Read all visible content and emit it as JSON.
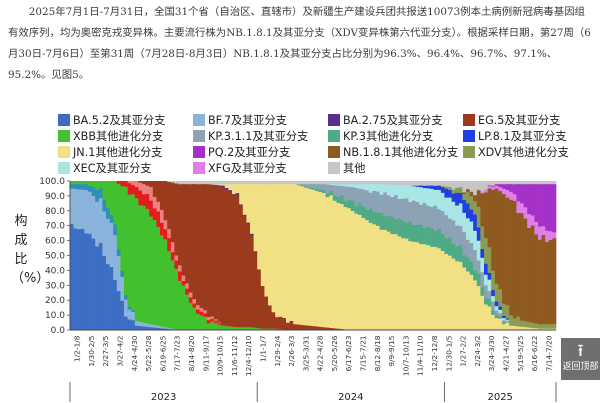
{
  "paragraph": "2025年7月1日-7月31日，全国31个省（自治区、直辖市）及新疆生产建设兵团共报送10073例本土病例新冠病毒基因组有效序列，均为奥密克戎变异株。主要流行株为NB.1.8.1及其亚分支（XDV变异株第六代亚分支）。根据采样日期，第27周（6月30日-7月6日）至第31周（7月28日-8月3日）NB.1.8.1及其亚分支占比分别为96.3%、96.4%、96.7%、97.1%、95.2%。见图5。",
  "back_to_top": {
    "icon": "arrow-up-icon",
    "label": "返回顶部"
  },
  "chart_data": {
    "type": "bar",
    "stacked": true,
    "ylabel": "构成比（%）",
    "ylim": [
      0,
      100
    ],
    "yticks": [
      "0.0",
      "10.0",
      "20.0",
      "30.0",
      "40.0",
      "50.0",
      "60.0",
      "70.0",
      "80.0",
      "90.0",
      "100.0"
    ],
    "x_tick_labels": [
      "1/2-1/8",
      "1/30-2/5",
      "2/27-3/5",
      "3/27-4/2",
      "4/24-4/30",
      "5/22-5/28",
      "6/19-6/25",
      "7/17-7/23",
      "8/14-8/20",
      "9/11-9/17",
      "10/9-10/15",
      "11/6-11/12",
      "12/4-12/10",
      "1/1-1/7",
      "1/29-2/4",
      "2/26-3/3",
      "3/25-3/31",
      "4/22-4/28",
      "5/20-5/26",
      "6/17-6/23",
      "7/15-7/21",
      "8/12-8/18",
      "9/9-9/15",
      "10/7-10/13",
      "11/4-11/10",
      "12/2-12/8",
      "12/30-1/5",
      "1/27-2/2",
      "2/24-3/2",
      "3/24-3/30",
      "4/21-4/27",
      "5/19-5/25",
      "6/16-6/22",
      "7/14-7/20"
    ],
    "years": [
      "2023",
      "2024",
      "2025"
    ],
    "weeks_per_year": [
      52,
      52,
      31
    ],
    "legend": [
      {
        "key": "BA52",
        "label": "BA.5.2及其亚分支",
        "color": "#3c6fc4"
      },
      {
        "key": "BF7",
        "label": "BF.7及其亚分支",
        "color": "#8ab4dc"
      },
      {
        "key": "BA275",
        "label": "BA.2.75及其亚分支",
        "color": "#5a2d91"
      },
      {
        "key": "EG5",
        "label": "EG.5及其亚分支",
        "color": "#9b3a1c"
      },
      {
        "key": "XBB",
        "label": "XBB其他进化分支",
        "color": "#43c02e"
      },
      {
        "key": "KP311",
        "label": "KP.3.1.1及其亚分支",
        "color": "#8ca2b5"
      },
      {
        "key": "KP3",
        "label": "KP.3其他进化分支",
        "color": "#4faa86"
      },
      {
        "key": "LP81",
        "label": "LP.8.1及其亚分支",
        "color": "#1f3fe0"
      },
      {
        "key": "JN1",
        "label": "JN.1其他进化分支",
        "color": "#f1e184"
      },
      {
        "key": "PQ2",
        "label": "PQ.2及其亚分支",
        "color": "#a531c9"
      },
      {
        "key": "NB181",
        "label": "NB.1.8.1其他进化分支",
        "color": "#8e5a1f"
      },
      {
        "key": "XDV",
        "label": "XDV其他进化分支",
        "color": "#8c9b54"
      },
      {
        "key": "XEC",
        "label": "XEC及其亚分支",
        "color": "#a9e6e6"
      },
      {
        "key": "XFG",
        "label": "XFG及其亚分支",
        "color": "#e27fe6"
      },
      {
        "key": "OTHER",
        "label": "其他",
        "color": "#c6c6c6"
      },
      {
        "key": "BQ1",
        "label": "",
        "color": "#2f8fb8"
      },
      {
        "key": "XBB15",
        "label": "",
        "color": "#e41c1c"
      },
      {
        "key": "XBB2",
        "label": "",
        "color": "#ef7f7f"
      }
    ],
    "keyframes": [
      {
        "week": 0,
        "shares": {
          "BA52": 70,
          "BF7": 25,
          "BQ1": 3,
          "XBB": 2
        }
      },
      {
        "week": 4,
        "shares": {
          "BA52": 66,
          "BF7": 28,
          "BQ1": 4,
          "XBB": 2
        }
      },
      {
        "week": 8,
        "shares": {
          "BA52": 56,
          "BF7": 30,
          "BQ1": 8,
          "XBB": 6
        }
      },
      {
        "week": 12,
        "shares": {
          "BA52": 35,
          "BF7": 30,
          "BQ1": 6,
          "XBB": 29
        }
      },
      {
        "week": 15,
        "shares": {
          "BA52": 10,
          "BF7": 10,
          "BQ1": 3,
          "XBB": 72,
          "XBB15": 5
        }
      },
      {
        "week": 18,
        "shares": {
          "BA52": 3,
          "BF7": 3,
          "XBB": 82,
          "XBB15": 8,
          "XBB2": 4
        }
      },
      {
        "week": 22,
        "shares": {
          "BA52": 2,
          "BF7": 2,
          "XBB": 74,
          "XBB15": 10,
          "EG5": 4,
          "XBB2": 8
        }
      },
      {
        "week": 26,
        "shares": {
          "BA52": 1,
          "BF7": 1,
          "XBB": 58,
          "XBB15": 8,
          "EG5": 25,
          "XBB2": 7
        }
      },
      {
        "week": 30,
        "shares": {
          "XBB": 34,
          "XBB15": 5,
          "EG5": 55,
          "XBB2": 4,
          "OTHER": 2
        }
      },
      {
        "week": 34,
        "shares": {
          "XBB": 14,
          "XBB15": 3,
          "EG5": 78,
          "XBB2": 3,
          "OTHER": 2
        }
      },
      {
        "week": 38,
        "shares": {
          "XBB": 6,
          "XBB15": 2,
          "EG5": 88,
          "XBB2": 2,
          "OTHER": 2
        }
      },
      {
        "week": 42,
        "shares": {
          "XBB": 3,
          "XBB15": 1,
          "EG5": 92,
          "BA275": 1,
          "JN1": 1,
          "OTHER": 2
        }
      },
      {
        "week": 46,
        "shares": {
          "XBB": 2,
          "EG5": 88,
          "BA275": 1,
          "JN1": 7,
          "OTHER": 2
        }
      },
      {
        "week": 50,
        "shares": {
          "XBB": 2,
          "EG5": 62,
          "BA275": 1,
          "JN1": 33,
          "OTHER": 2
        }
      },
      {
        "week": 53,
        "shares": {
          "XBB": 1,
          "EG5": 28,
          "JN1": 69,
          "OTHER": 2
        }
      },
      {
        "week": 56,
        "shares": {
          "XBB": 1,
          "EG5": 10,
          "JN1": 87,
          "OTHER": 2
        }
      },
      {
        "week": 62,
        "shares": {
          "EG5": 4,
          "JN1": 94,
          "OTHER": 2
        }
      },
      {
        "week": 70,
        "shares": {
          "EG5": 2,
          "JN1": 90,
          "KP3": 2,
          "KP311": 4,
          "OTHER": 2
        }
      },
      {
        "week": 78,
        "shares": {
          "JN1": 80,
          "KP3": 6,
          "KP311": 10,
          "XEC": 2,
          "OTHER": 2
        }
      },
      {
        "week": 86,
        "shares": {
          "JN1": 68,
          "KP3": 10,
          "KP311": 14,
          "XEC": 6,
          "OTHER": 2
        }
      },
      {
        "week": 94,
        "shares": {
          "JN1": 60,
          "KP3": 12,
          "KP311": 15,
          "XEC": 10,
          "OTHER": 3
        }
      },
      {
        "week": 102,
        "shares": {
          "JN1": 55,
          "KP3": 12,
          "KP311": 15,
          "XEC": 12,
          "LP81": 3,
          "OTHER": 3
        }
      },
      {
        "week": 108,
        "shares": {
          "JN1": 45,
          "KP3": 10,
          "KP311": 14,
          "XEC": 14,
          "LP81": 8,
          "XDV": 4,
          "OTHER": 5
        }
      },
      {
        "week": 112,
        "shares": {
          "JN1": 34,
          "KP3": 8,
          "KP311": 12,
          "XEC": 14,
          "LP81": 10,
          "XDV": 10,
          "NB181": 4,
          "OTHER": 8
        }
      },
      {
        "week": 115,
        "shares": {
          "JN1": 18,
          "KP3": 5,
          "KP311": 8,
          "XEC": 8,
          "LP81": 6,
          "XDV": 18,
          "NB181": 30,
          "XFG": 2,
          "OTHER": 5
        }
      },
      {
        "week": 118,
        "shares": {
          "JN1": 8,
          "KP3": 2,
          "KP311": 3,
          "XEC": 3,
          "LP81": 3,
          "XDV": 12,
          "NB181": 64,
          "XFG": 2,
          "PQ2": 1,
          "OTHER": 2
        }
      },
      {
        "week": 122,
        "shares": {
          "JN1": 3,
          "XDV": 7,
          "NB181": 78,
          "XFG": 5,
          "PQ2": 5,
          "OTHER": 2
        }
      },
      {
        "week": 126,
        "shares": {
          "JN1": 2,
          "XDV": 4,
          "NB181": 68,
          "XFG": 8,
          "PQ2": 16,
          "OTHER": 2
        }
      },
      {
        "week": 130,
        "shares": {
          "JN1": 1,
          "XDV": 3,
          "NB181": 58,
          "XFG": 8,
          "PQ2": 28,
          "OTHER": 2
        }
      },
      {
        "week": 134,
        "shares": {
          "JN1": 1,
          "XDV": 3,
          "NB181": 56,
          "XFG": 5,
          "PQ2": 33,
          "OTHER": 2
        }
      }
    ]
  }
}
